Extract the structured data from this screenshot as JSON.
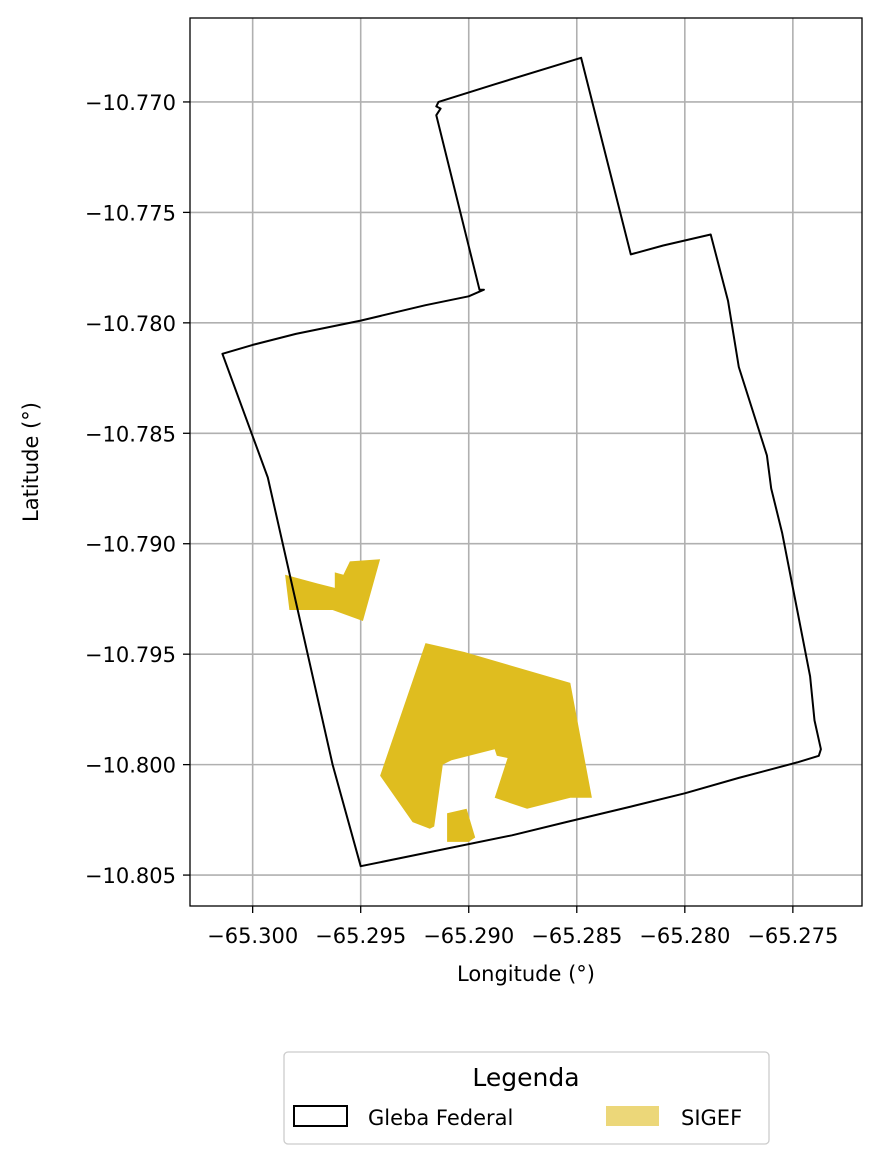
{
  "chart_data": {
    "type": "map",
    "xlabel": "Longitude (°)",
    "ylabel": "Latitude (°)",
    "xlim": [
      -65.3029,
      -65.2718
    ],
    "ylim": [
      -10.8064,
      -10.7662
    ],
    "xticks": [
      -65.3,
      -65.295,
      -65.29,
      -65.285,
      -65.28,
      -65.275
    ],
    "xtick_labels": [
      "−65.300",
      "−65.295",
      "−65.290",
      "−65.285",
      "−65.280",
      "−65.275"
    ],
    "yticks": [
      -10.77,
      -10.775,
      -10.78,
      -10.785,
      -10.79,
      -10.795,
      -10.8,
      -10.805
    ],
    "ytick_labels": [
      "−10.770",
      "−10.775",
      "−10.780",
      "−10.785",
      "−10.790",
      "−10.795",
      "−10.800",
      "−10.805"
    ],
    "grid": true,
    "legend": {
      "title": "Legenda",
      "placement": "below-center",
      "entries": [
        {
          "label": "Gleba Federal",
          "style": "outline",
          "color": "#000000"
        },
        {
          "label": "SIGEF",
          "style": "fill",
          "color": "#dfbd1f"
        }
      ]
    },
    "layers": [
      {
        "name": "Gleba Federal",
        "style": "outline",
        "color": "#000000",
        "polygons": [
          [
            [
              -65.2914,
              -10.77
            ],
            [
              -65.2888,
              -10.7692
            ],
            [
              -65.2848,
              -10.768
            ],
            [
              -65.2848,
              -10.768
            ],
            [
              -65.2825,
              -10.7769
            ],
            [
              -65.281,
              -10.7765
            ],
            [
              -65.2788,
              -10.776
            ],
            [
              -65.278,
              -10.779
            ],
            [
              -65.2775,
              -10.782
            ],
            [
              -65.2762,
              -10.786
            ],
            [
              -65.276,
              -10.7875
            ],
            [
              -65.2755,
              -10.7895
            ],
            [
              -65.2748,
              -10.793
            ],
            [
              -65.2742,
              -10.796
            ],
            [
              -65.274,
              -10.798
            ],
            [
              -65.2737,
              -10.7993
            ],
            [
              -65.2738,
              -10.7996
            ],
            [
              -65.2748,
              -10.7999
            ],
            [
              -65.2775,
              -10.8006
            ],
            [
              -65.28,
              -10.8013
            ],
            [
              -65.2825,
              -10.8019
            ],
            [
              -65.2855,
              -10.8026
            ],
            [
              -65.288,
              -10.8032
            ],
            [
              -65.295,
              -10.8046
            ],
            [
              -65.2963,
              -10.8
            ],
            [
              -65.2978,
              -10.7935
            ],
            [
              -65.2993,
              -10.787
            ],
            [
              -65.3014,
              -10.7814
            ],
            [
              -65.3,
              -10.781
            ],
            [
              -65.298,
              -10.7805
            ],
            [
              -65.295,
              -10.7799
            ],
            [
              -65.292,
              -10.7792
            ],
            [
              -65.29,
              -10.7788
            ],
            [
              -65.2893,
              -10.7785
            ],
            [
              -65.2895,
              -10.7785
            ],
            [
              -65.2915,
              -10.7706
            ],
            [
              -65.2913,
              -10.7703
            ],
            [
              -65.2915,
              -10.7702
            ],
            [
              -65.2914,
              -10.77
            ]
          ]
        ]
      },
      {
        "name": "SIGEF",
        "style": "fill",
        "color": "#dfbd1f",
        "polygons": [
          [
            [
              -65.2985,
              -10.7914
            ],
            [
              -65.297,
              -10.7918
            ],
            [
              -65.2962,
              -10.792
            ],
            [
              -65.2962,
              -10.7913
            ],
            [
              -65.2958,
              -10.7914
            ],
            [
              -65.2955,
              -10.7908
            ],
            [
              -65.2941,
              -10.7907
            ],
            [
              -65.2949,
              -10.7935
            ],
            [
              -65.2963,
              -10.793
            ],
            [
              -65.2979,
              -10.793
            ],
            [
              -65.2983,
              -10.793
            ]
          ],
          [
            [
              -65.292,
              -10.7945
            ],
            [
              -65.2902,
              -10.7949
            ],
            [
              -65.2853,
              -10.7963
            ],
            [
              -65.2843,
              -10.8015
            ],
            [
              -65.2853,
              -10.8015
            ],
            [
              -65.2873,
              -10.802
            ],
            [
              -65.2888,
              -10.8015
            ],
            [
              -65.2882,
              -10.7997
            ],
            [
              -65.2887,
              -10.7996
            ],
            [
              -65.2888,
              -10.7993
            ],
            [
              -65.2908,
              -10.7998
            ],
            [
              -65.2912,
              -10.8
            ],
            [
              -65.2916,
              -10.8028
            ],
            [
              -65.2918,
              -10.8029
            ],
            [
              -65.2926,
              -10.8026
            ],
            [
              -65.2941,
              -10.8005
            ]
          ],
          [
            [
              -65.291,
              -10.8022
            ],
            [
              -65.2901,
              -10.802
            ],
            [
              -65.2897,
              -10.8033
            ],
            [
              -65.29,
              -10.8035
            ],
            [
              -65.291,
              -10.8035
            ]
          ]
        ]
      }
    ]
  }
}
